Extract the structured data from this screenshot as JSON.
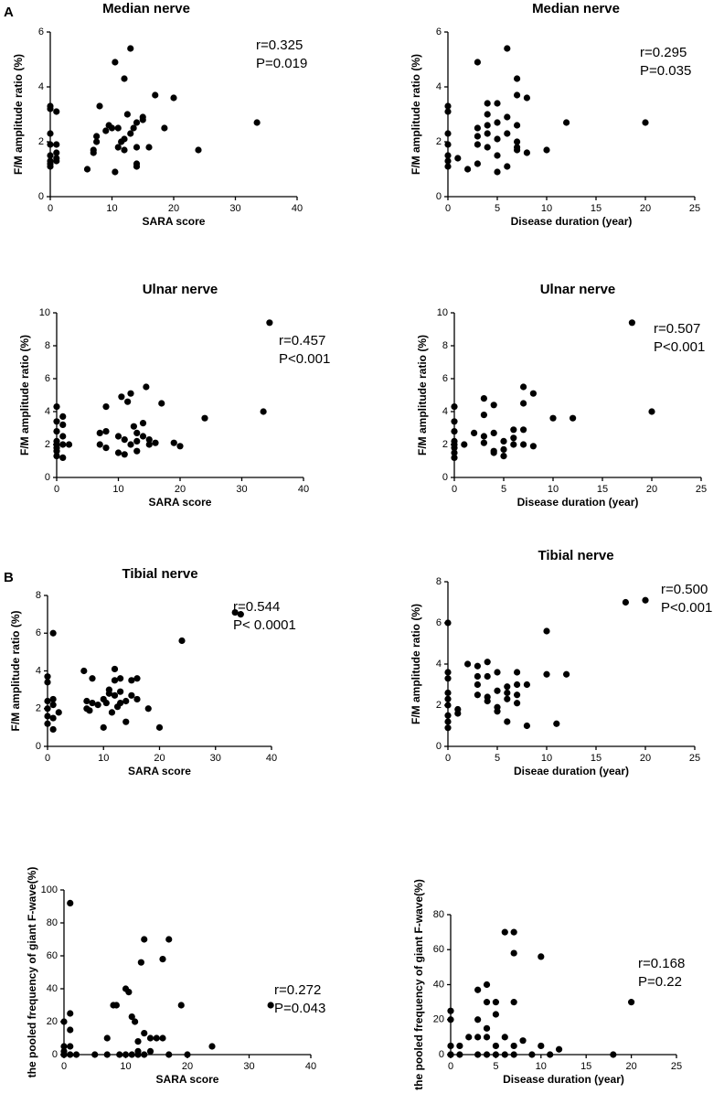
{
  "panel_labels": [
    "A",
    "B"
  ],
  "chart_data": [
    {
      "type": "scatter",
      "title": "Median nerve",
      "xlabel": "SARA score",
      "ylabel": "F/M amplitude ratio (%)",
      "annotations": [
        "r=0.325",
        "P=0.019"
      ],
      "color": "#000000",
      "xlim": [
        0,
        40
      ],
      "ylim": [
        0,
        6
      ],
      "xticks": [
        0,
        10,
        20,
        30,
        40
      ],
      "yticks": [
        0,
        2,
        4,
        6
      ],
      "x": [
        0,
        0,
        0,
        0,
        0,
        0,
        0,
        0,
        1,
        1,
        1,
        1,
        1,
        6,
        7,
        7,
        7.5,
        7.5,
        8,
        9,
        9.5,
        10,
        10.5,
        10.5,
        11,
        11,
        11.5,
        12,
        12,
        12,
        12.5,
        13,
        13,
        13.5,
        14,
        14,
        14,
        14,
        15,
        15,
        16,
        17,
        18.5,
        20,
        24,
        33.5
      ],
      "values": [
        3.3,
        3.2,
        2.3,
        1.9,
        1.5,
        1.3,
        1.2,
        1.1,
        3.1,
        1.9,
        1.6,
        1.4,
        1.3,
        1.0,
        1.7,
        1.6,
        2.2,
        2.0,
        3.3,
        2.4,
        2.6,
        2.5,
        4.9,
        0.9,
        1.8,
        2.5,
        2.0,
        4.3,
        2.1,
        1.7,
        3.0,
        5.4,
        2.3,
        2.5,
        2.7,
        1.8,
        1.2,
        1.1,
        2.9,
        2.8,
        1.8,
        3.7,
        2.5,
        3.6,
        1.7,
        2.7
      ]
    },
    {
      "type": "scatter",
      "title": "Median nerve",
      "xlabel": "Disease duration (year)",
      "ylabel": "F/M amplitude ratio (%)",
      "annotations": [
        "r=0.295",
        "P=0.035"
      ],
      "color": "#000000",
      "xlim": [
        0,
        25
      ],
      "ylim": [
        0,
        6
      ],
      "xticks": [
        0,
        5,
        10,
        15,
        20,
        25
      ],
      "yticks": [
        0,
        2,
        4,
        6
      ],
      "x": [
        0,
        0,
        0,
        0,
        0,
        0,
        0,
        1,
        2,
        3,
        3,
        3,
        3,
        3,
        4,
        4,
        4,
        4,
        4,
        5,
        5,
        5,
        5,
        5,
        6,
        6,
        6,
        6,
        7,
        7,
        7,
        7,
        7,
        7,
        8,
        8,
        10,
        12,
        20
      ],
      "values": [
        3.3,
        3.1,
        2.3,
        1.9,
        1.5,
        1.3,
        1.1,
        1.4,
        1.0,
        4.9,
        2.5,
        2.2,
        1.2,
        1.9,
        3.4,
        2.6,
        2.3,
        1.8,
        3.0,
        3.4,
        2.7,
        2.1,
        0.9,
        1.5,
        5.4,
        2.9,
        2.3,
        1.1,
        4.3,
        3.7,
        2.6,
        1.8,
        1.7,
        2.0,
        3.6,
        1.6,
        1.7,
        2.7,
        2.7
      ]
    },
    {
      "type": "scatter",
      "title": "Ulnar nerve",
      "xlabel": "SARA score",
      "ylabel": "F/M amplitude ratio (%)",
      "annotations": [
        "r=0.457",
        "P<0.001"
      ],
      "color": "#000000",
      "xlim": [
        0,
        40
      ],
      "ylim": [
        0,
        10
      ],
      "xticks": [
        0,
        10,
        20,
        30,
        40
      ],
      "yticks": [
        0,
        2,
        4,
        6,
        8,
        10
      ],
      "x": [
        0,
        0,
        0,
        0,
        0,
        0,
        0,
        0,
        1,
        1,
        1,
        1,
        1,
        2,
        7,
        7,
        8,
        8,
        8,
        10,
        10,
        10.5,
        11,
        11,
        11.5,
        12,
        12,
        12.5,
        13,
        13,
        13,
        14,
        14,
        14.5,
        15,
        15,
        16,
        17,
        19,
        20,
        24,
        33.5,
        34.5
      ],
      "values": [
        4.3,
        3.4,
        2.8,
        2.2,
        2.0,
        1.8,
        1.6,
        1.3,
        3.7,
        3.2,
        2.5,
        2.0,
        1.2,
        2.0,
        2.7,
        2.0,
        4.3,
        2.8,
        1.8,
        2.5,
        1.5,
        4.9,
        2.3,
        1.4,
        4.6,
        5.1,
        2.0,
        3.1,
        2.7,
        2.2,
        1.6,
        2.5,
        3.3,
        5.5,
        2.3,
        2.0,
        2.1,
        4.5,
        2.1,
        1.9,
        3.6,
        4.0,
        9.4
      ]
    },
    {
      "type": "scatter",
      "title": "Ulnar nerve",
      "xlabel": "Disease duration (year)",
      "ylabel": "F/M amplitude ratio (%)",
      "annotations": [
        "r=0.507",
        "P<0.001"
      ],
      "color": "#000000",
      "xlim": [
        0,
        25
      ],
      "ylim": [
        0,
        10
      ],
      "xticks": [
        0,
        5,
        10,
        15,
        20,
        25
      ],
      "yticks": [
        0,
        2,
        4,
        6,
        8,
        10
      ],
      "x": [
        0,
        0,
        0,
        0,
        0,
        0,
        0,
        0,
        1,
        2,
        3,
        3,
        3,
        3,
        4,
        4,
        4,
        4,
        5,
        5,
        5,
        6,
        6,
        6,
        7,
        7,
        7,
        7,
        8,
        8,
        10,
        12,
        18,
        20
      ],
      "values": [
        4.3,
        3.4,
        2.8,
        2.2,
        2.0,
        1.8,
        1.5,
        1.2,
        2.0,
        2.7,
        4.8,
        3.8,
        2.5,
        2.1,
        4.4,
        2.7,
        1.6,
        1.5,
        2.2,
        1.7,
        1.3,
        2.9,
        2.4,
        2.0,
        5.5,
        4.5,
        2.9,
        2.0,
        5.1,
        1.9,
        3.6,
        3.6,
        9.4,
        4.0
      ]
    },
    {
      "type": "scatter",
      "title": "Tibial nerve",
      "xlabel": "SARA score",
      "ylabel": "F/M amplitude ratio (%)",
      "annotations": [
        "r=0.544",
        "P< 0.0001"
      ],
      "color": "#000000",
      "xlim": [
        0,
        40
      ],
      "ylim": [
        0,
        8
      ],
      "xticks": [
        0,
        10,
        20,
        30,
        40
      ],
      "yticks": [
        0,
        2,
        4,
        6,
        8
      ],
      "x": [
        0,
        0,
        0,
        0,
        0,
        0,
        1,
        1,
        1,
        1,
        1,
        2,
        6.5,
        7,
        7,
        7.5,
        8,
        8,
        9,
        10,
        10,
        10.5,
        11,
        11,
        11.5,
        12,
        12,
        12,
        12.5,
        13,
        13,
        13,
        14,
        14,
        15,
        15,
        16,
        16,
        18,
        20,
        24,
        33.5,
        34.5
      ],
      "values": [
        3.7,
        3.4,
        2.4,
        2.0,
        1.6,
        1.2,
        6.0,
        2.5,
        2.2,
        0.9,
        1.5,
        1.8,
        4.0,
        2.4,
        2.0,
        1.9,
        3.6,
        2.3,
        2.2,
        2.5,
        1.0,
        2.3,
        3.0,
        2.8,
        1.8,
        4.1,
        3.5,
        2.7,
        2.1,
        3.6,
        2.9,
        2.3,
        2.4,
        1.3,
        3.5,
        2.7,
        3.6,
        2.5,
        2.0,
        1.0,
        5.6,
        7.1,
        7.0
      ]
    },
    {
      "type": "scatter",
      "title": "Tibial nerve",
      "xlabel": "Diseae duration (year)",
      "ylabel": "F/M amplitude ratio (%)",
      "annotations": [
        "r=0.500",
        "P<0.001"
      ],
      "color": "#000000",
      "xlim": [
        0,
        25
      ],
      "ylim": [
        0,
        8
      ],
      "xticks": [
        0,
        5,
        10,
        15,
        20,
        25
      ],
      "yticks": [
        0,
        2,
        4,
        6,
        8
      ],
      "x": [
        0,
        0,
        0,
        0,
        0,
        0,
        0,
        0,
        0,
        1,
        1,
        2,
        3,
        3,
        3,
        3,
        4,
        4,
        4,
        4,
        5,
        5,
        5,
        5,
        6,
        6,
        6,
        6,
        7,
        7,
        7,
        7,
        8,
        8,
        10,
        10,
        11,
        12,
        18,
        20
      ],
      "values": [
        6.0,
        3.6,
        3.3,
        2.6,
        2.3,
        2.0,
        1.5,
        1.2,
        0.9,
        1.8,
        1.6,
        4.0,
        3.9,
        3.4,
        3.0,
        2.5,
        4.1,
        3.4,
        2.4,
        2.2,
        3.6,
        2.7,
        1.9,
        1.7,
        2.9,
        2.6,
        2.3,
        1.2,
        3.6,
        3.0,
        2.5,
        2.1,
        3.0,
        1.0,
        5.6,
        3.5,
        1.1,
        3.5,
        7.0,
        7.1
      ]
    },
    {
      "type": "scatter",
      "xlabel": "SARA score",
      "ylabel": "the pooled frequency of giant F-wave(%)",
      "annotations": [
        "r=0.272",
        "P=0.043"
      ],
      "color": "#000000",
      "xlim": [
        0,
        40
      ],
      "ylim": [
        0,
        100
      ],
      "xticks": [
        0,
        10,
        20,
        30,
        40
      ],
      "yticks": [
        0,
        20,
        40,
        60,
        80,
        100
      ],
      "x": [
        0,
        0,
        0,
        0,
        0,
        1,
        1,
        1,
        1,
        1,
        2,
        5,
        7,
        7,
        8,
        8.5,
        9,
        10,
        10,
        10.5,
        11,
        11,
        11.5,
        12,
        12,
        12,
        12.5,
        13,
        13,
        13,
        14,
        14,
        15,
        16,
        16,
        17,
        17,
        19,
        20,
        24,
        33.5
      ],
      "values": [
        20,
        5,
        2,
        0,
        0,
        92,
        25,
        15,
        5,
        0,
        0,
        0,
        0,
        10,
        30,
        30,
        0,
        40,
        0,
        38,
        23,
        0,
        20,
        8,
        2,
        0,
        56,
        70,
        13,
        0,
        10,
        2,
        10,
        58,
        10,
        70,
        0,
        30,
        0,
        5,
        30
      ]
    },
    {
      "type": "scatter",
      "xlabel": "Disease duration (year)",
      "ylabel": "the pooled frequency of giant F-wave(%)",
      "annotations": [
        "r=0.168",
        "P=0.22"
      ],
      "color": "#000000",
      "xlim": [
        0,
        25
      ],
      "ylim": [
        0,
        80
      ],
      "xticks": [
        0,
        5,
        10,
        15,
        20,
        25
      ],
      "yticks": [
        0,
        20,
        40,
        60,
        80
      ],
      "x": [
        0,
        0,
        0,
        0,
        0,
        1,
        1,
        2,
        3,
        3,
        3,
        3,
        4,
        4,
        4,
        4,
        4,
        5,
        5,
        5,
        5,
        6,
        6,
        6,
        7,
        7,
        7,
        7,
        7,
        8,
        9,
        10,
        10,
        11,
        12,
        18,
        20
      ],
      "values": [
        25,
        20,
        5,
        0,
        0,
        0,
        5,
        10,
        37,
        20,
        10,
        0,
        40,
        30,
        15,
        10,
        0,
        30,
        23,
        5,
        0,
        70,
        10,
        0,
        70,
        58,
        30,
        5,
        0,
        8,
        0,
        56,
        5,
        0,
        3,
        0,
        30
      ]
    }
  ]
}
